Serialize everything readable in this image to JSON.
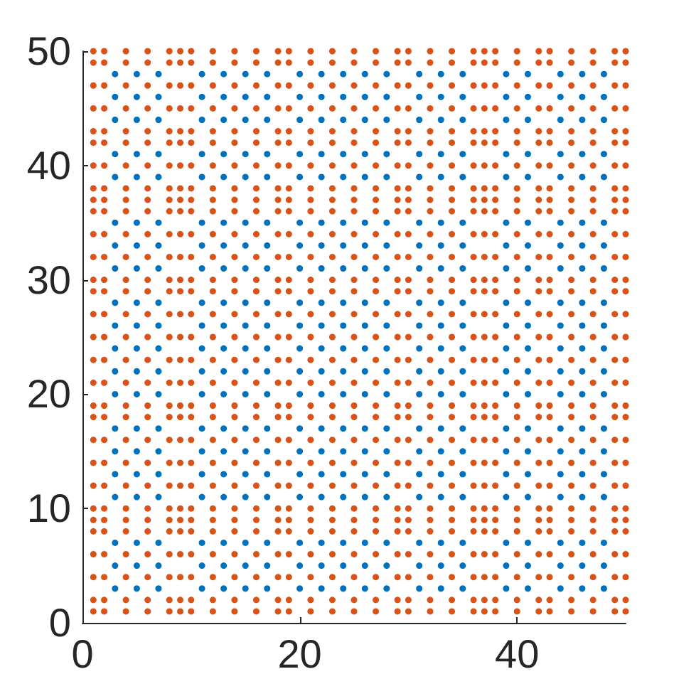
{
  "chart_data": {
    "type": "scatter",
    "xlim": [
      0,
      50
    ],
    "ylim": [
      0,
      50
    ],
    "xticks": [
      0,
      20,
      40
    ],
    "yticks": [
      0,
      10,
      20,
      30,
      40,
      50
    ],
    "grid": false,
    "legend": false,
    "marker": "circle",
    "series": [
      {
        "color": "#d95319",
        "x": [
          1,
          1,
          1,
          1,
          1,
          1,
          1,
          1,
          1,
          1,
          1,
          1,
          1,
          1,
          1,
          1,
          1,
          1,
          1,
          1,
          1,
          1,
          1,
          1,
          1,
          1,
          1,
          1,
          1,
          1,
          2,
          2,
          2,
          2,
          2,
          2,
          2,
          2,
          2,
          2,
          2,
          2,
          2,
          2,
          2,
          2,
          2,
          2,
          2,
          2,
          2,
          2,
          2,
          2,
          2,
          2,
          2,
          2,
          2,
          2,
          4,
          4,
          4,
          4,
          4,
          4,
          4,
          4,
          4,
          4,
          4,
          4,
          4,
          4,
          4,
          4,
          4,
          4,
          4,
          4,
          4,
          4,
          4,
          4,
          4,
          4,
          4,
          4,
          4,
          4,
          6,
          6,
          6,
          6,
          6,
          6,
          6,
          6,
          6,
          6,
          6,
          6,
          6,
          6,
          6,
          6,
          6,
          6,
          6,
          6,
          6,
          6,
          6,
          6,
          6,
          6,
          6,
          6,
          6,
          6,
          8,
          8,
          8,
          8,
          8,
          8,
          8,
          8,
          8,
          8,
          8,
          8,
          8,
          8,
          8,
          8,
          8,
          8,
          8,
          8,
          8,
          8,
          8,
          8,
          8,
          8,
          8,
          8,
          8,
          8,
          9,
          9,
          9,
          9,
          9,
          9,
          9,
          9,
          9,
          9,
          9,
          9,
          9,
          9,
          9,
          9,
          9,
          9,
          9,
          9,
          9,
          9,
          9,
          9,
          9,
          9,
          9,
          9,
          9,
          9,
          10,
          10,
          10,
          10,
          10,
          10,
          10,
          10,
          10,
          10,
          10,
          10,
          10,
          10,
          10,
          10,
          10,
          10,
          10,
          10,
          10,
          10,
          10,
          10,
          10,
          10,
          10,
          10,
          10,
          10,
          12,
          12,
          12,
          12,
          12,
          12,
          12,
          12,
          12,
          12,
          12,
          12,
          12,
          12,
          12,
          12,
          12,
          12,
          12,
          12,
          12,
          12,
          12,
          12,
          12,
          12,
          12,
          12,
          12,
          12,
          14,
          14,
          14,
          14,
          14,
          14,
          14,
          14,
          14,
          14,
          14,
          14,
          14,
          14,
          14,
          14,
          14,
          14,
          14,
          14,
          14,
          14,
          14,
          14,
          14,
          14,
          14,
          14,
          14,
          14,
          16,
          16,
          16,
          16,
          16,
          16,
          16,
          16,
          16,
          16,
          16,
          16,
          16,
          16,
          16,
          16,
          16,
          16,
          16,
          16,
          16,
          16,
          16,
          16,
          16,
          16,
          16,
          16,
          16,
          16,
          18,
          18,
          18,
          18,
          18,
          18,
          18,
          18,
          18,
          18,
          18,
          18,
          18,
          18,
          18,
          18,
          18,
          18,
          18,
          18,
          18,
          18,
          18,
          18,
          18,
          18,
          18,
          18,
          18,
          18,
          19,
          19,
          19,
          19,
          19,
          19,
          19,
          19,
          19,
          19,
          19,
          19,
          19,
          19,
          19,
          19,
          19,
          19,
          19,
          19,
          19,
          19,
          19,
          19,
          19,
          19,
          19,
          19,
          19,
          19,
          21,
          21,
          21,
          21,
          21,
          21,
          21,
          21,
          21,
          21,
          21,
          21,
          21,
          21,
          21,
          21,
          21,
          21,
          21,
          21,
          21,
          21,
          21,
          21,
          21,
          21,
          21,
          21,
          21,
          21,
          23,
          23,
          23,
          23,
          23,
          23,
          23,
          23,
          23,
          23,
          23,
          23,
          23,
          23,
          23,
          23,
          23,
          23,
          23,
          23,
          23,
          23,
          23,
          23,
          23,
          23,
          23,
          23,
          23,
          23,
          25,
          25,
          25,
          25,
          25,
          25,
          25,
          25,
          25,
          25,
          25,
          25,
          25,
          25,
          25,
          25,
          25,
          25,
          25,
          25,
          25,
          25,
          25,
          25,
          25,
          25,
          25,
          25,
          25,
          25,
          27,
          27,
          27,
          27,
          27,
          27,
          27,
          27,
          27,
          27,
          27,
          27,
          27,
          27,
          27,
          27,
          27,
          27,
          27,
          27,
          27,
          27,
          27,
          27,
          27,
          27,
          27,
          27,
          27,
          27,
          29,
          29,
          29,
          29,
          29,
          29,
          29,
          29,
          29,
          29,
          29,
          29,
          29,
          29,
          29,
          29,
          29,
          29,
          29,
          29,
          29,
          29,
          29,
          29,
          29,
          29,
          29,
          29,
          29,
          29,
          30,
          30,
          30,
          30,
          30,
          30,
          30,
          30,
          30,
          30,
          30,
          30,
          30,
          30,
          30,
          30,
          30,
          30,
          30,
          30,
          30,
          30,
          30,
          30,
          30,
          30,
          30,
          30,
          30,
          30,
          32,
          32,
          32,
          32,
          32,
          32,
          32,
          32,
          32,
          32,
          32,
          32,
          32,
          32,
          32,
          32,
          32,
          32,
          32,
          32,
          32,
          32,
          32,
          32,
          32,
          32,
          32,
          32,
          32,
          32,
          34,
          34,
          34,
          34,
          34,
          34,
          34,
          34,
          34,
          34,
          34,
          34,
          34,
          34,
          34,
          34,
          34,
          34,
          34,
          34,
          34,
          34,
          34,
          34,
          34,
          34,
          34,
          34,
          34,
          34,
          36,
          36,
          36,
          36,
          36,
          36,
          36,
          36,
          36,
          36,
          36,
          36,
          36,
          36,
          36,
          36,
          36,
          36,
          36,
          36,
          36,
          36,
          36,
          36,
          36,
          36,
          36,
          36,
          36,
          36,
          37,
          37,
          37,
          37,
          37,
          37,
          37,
          37,
          37,
          37,
          37,
          37,
          37,
          37,
          37,
          37,
          37,
          37,
          37,
          37,
          37,
          37,
          37,
          37,
          37,
          37,
          37,
          37,
          37,
          37,
          38,
          38,
          38,
          38,
          38,
          38,
          38,
          38,
          38,
          38,
          38,
          38,
          38,
          38,
          38,
          38,
          38,
          38,
          38,
          38,
          38,
          38,
          38,
          38,
          38,
          38,
          38,
          38,
          38,
          38,
          40,
          40,
          40,
          40,
          40,
          40,
          40,
          40,
          40,
          40,
          40,
          40,
          40,
          40,
          40,
          40,
          40,
          40,
          40,
          40,
          40,
          40,
          40,
          40,
          40,
          40,
          40,
          40,
          40,
          40,
          42,
          42,
          42,
          42,
          42,
          42,
          42,
          42,
          42,
          42,
          42,
          42,
          42,
          42,
          42,
          42,
          42,
          42,
          42,
          42,
          42,
          42,
          42,
          42,
          42,
          42,
          42,
          42,
          42,
          42,
          43,
          43,
          43,
          43,
          43,
          43,
          43,
          43,
          43,
          43,
          43,
          43,
          43,
          43,
          43,
          43,
          43,
          43,
          43,
          43,
          43,
          43,
          43,
          43,
          43,
          43,
          43,
          43,
          43,
          43,
          45,
          45,
          45,
          45,
          45,
          45,
          45,
          45,
          45,
          45,
          45,
          45,
          45,
          45,
          45,
          45,
          45,
          45,
          45,
          45,
          45,
          45,
          45,
          45,
          45,
          45,
          45,
          45,
          45,
          45,
          47,
          47,
          47,
          47,
          47,
          47,
          47,
          47,
          47,
          47,
          47,
          47,
          47,
          47,
          47,
          47,
          47,
          47,
          47,
          47,
          47,
          47,
          47,
          47,
          47,
          47,
          47,
          47,
          47,
          47,
          49,
          49,
          49,
          49,
          49,
          49,
          49,
          49,
          49,
          49,
          49,
          49,
          49,
          49,
          49,
          49,
          49,
          49,
          49,
          49,
          49,
          49,
          49,
          49,
          49,
          49,
          49,
          49,
          49,
          49,
          50,
          50,
          50,
          50,
          50,
          50,
          50,
          50,
          50,
          50,
          50,
          50,
          50,
          50,
          50,
          50,
          50,
          50,
          50,
          50,
          50,
          50,
          50,
          50,
          50,
          50,
          50,
          50,
          50,
          50
        ],
        "values": [
          1,
          2,
          4,
          6,
          8,
          9,
          10,
          12,
          14,
          16,
          18,
          19,
          21,
          23,
          25,
          27,
          29,
          30,
          32,
          34,
          36,
          37,
          38,
          40,
          42,
          43,
          45,
          47,
          49,
          50,
          1,
          2,
          4,
          6,
          8,
          9,
          10,
          12,
          14,
          16,
          18,
          19,
          21,
          23,
          25,
          27,
          29,
          30,
          32,
          34,
          36,
          37,
          38,
          40,
          42,
          43,
          45,
          47,
          49,
          50,
          1,
          2,
          4,
          6,
          8,
          9,
          10,
          12,
          14,
          16,
          18,
          19,
          21,
          23,
          25,
          27,
          29,
          30,
          32,
          34,
          36,
          37,
          38,
          40,
          42,
          43,
          45,
          47,
          49,
          50,
          1,
          2,
          4,
          6,
          8,
          9,
          10,
          12,
          14,
          16,
          18,
          19,
          21,
          23,
          25,
          27,
          29,
          30,
          32,
          34,
          36,
          37,
          38,
          40,
          42,
          43,
          45,
          47,
          49,
          50,
          1,
          2,
          4,
          6,
          8,
          9,
          10,
          12,
          14,
          16,
          18,
          19,
          21,
          23,
          25,
          27,
          29,
          30,
          32,
          34,
          36,
          37,
          38,
          40,
          42,
          43,
          45,
          47,
          49,
          50,
          1,
          2,
          4,
          6,
          8,
          9,
          10,
          12,
          14,
          16,
          18,
          19,
          21,
          23,
          25,
          27,
          29,
          30,
          32,
          34,
          36,
          37,
          38,
          40,
          42,
          43,
          45,
          47,
          49,
          50,
          1,
          2,
          4,
          6,
          8,
          9,
          10,
          12,
          14,
          16,
          18,
          19,
          21,
          23,
          25,
          27,
          29,
          30,
          32,
          34,
          36,
          37,
          38,
          40,
          42,
          43,
          45,
          47,
          49,
          50,
          1,
          2,
          4,
          6,
          8,
          9,
          10,
          12,
          14,
          16,
          18,
          19,
          21,
          23,
          25,
          27,
          29,
          30,
          32,
          34,
          36,
          37,
          38,
          40,
          42,
          43,
          45,
          47,
          49,
          50,
          1,
          2,
          4,
          6,
          8,
          9,
          10,
          12,
          14,
          16,
          18,
          19,
          21,
          23,
          25,
          27,
          29,
          30,
          32,
          34,
          36,
          37,
          38,
          40,
          42,
          43,
          45,
          47,
          49,
          50,
          1,
          2,
          4,
          6,
          8,
          9,
          10,
          12,
          14,
          16,
          18,
          19,
          21,
          23,
          25,
          27,
          29,
          30,
          32,
          34,
          36,
          37,
          38,
          40,
          42,
          43,
          45,
          47,
          49,
          50,
          1,
          2,
          4,
          6,
          8,
          9,
          10,
          12,
          14,
          16,
          18,
          19,
          21,
          23,
          25,
          27,
          29,
          30,
          32,
          34,
          36,
          37,
          38,
          40,
          42,
          43,
          45,
          47,
          49,
          50,
          1,
          2,
          4,
          6,
          8,
          9,
          10,
          12,
          14,
          16,
          18,
          19,
          21,
          23,
          25,
          27,
          29,
          30,
          32,
          34,
          36,
          37,
          38,
          40,
          42,
          43,
          45,
          47,
          49,
          50,
          1,
          2,
          4,
          6,
          8,
          9,
          10,
          12,
          14,
          16,
          18,
          19,
          21,
          23,
          25,
          27,
          29,
          30,
          32,
          34,
          36,
          37,
          38,
          40,
          42,
          43,
          45,
          47,
          49,
          50,
          1,
          2,
          4,
          6,
          8,
          9,
          10,
          12,
          14,
          16,
          18,
          19,
          21,
          23,
          25,
          27,
          29,
          30,
          32,
          34,
          36,
          37,
          38,
          40,
          42,
          43,
          45,
          47,
          49,
          50,
          1,
          2,
          4,
          6,
          8,
          9,
          10,
          12,
          14,
          16,
          18,
          19,
          21,
          23,
          25,
          27,
          29,
          30,
          32,
          34,
          36,
          37,
          38,
          40,
          42,
          43,
          45,
          47,
          49,
          50,
          1,
          2,
          4,
          6,
          8,
          9,
          10,
          12,
          14,
          16,
          18,
          19,
          21,
          23,
          25,
          27,
          29,
          30,
          32,
          34,
          36,
          37,
          38,
          40,
          42,
          43,
          45,
          47,
          49,
          50,
          1,
          2,
          4,
          6,
          8,
          9,
          10,
          12,
          14,
          16,
          18,
          19,
          21,
          23,
          25,
          27,
          29,
          30,
          32,
          34,
          36,
          37,
          38,
          40,
          42,
          43,
          45,
          47,
          49,
          50,
          1,
          2,
          4,
          6,
          8,
          9,
          10,
          12,
          14,
          16,
          18,
          19,
          21,
          23,
          25,
          27,
          29,
          30,
          32,
          34,
          36,
          37,
          38,
          40,
          42,
          43,
          45,
          47,
          49,
          50,
          1,
          2,
          4,
          6,
          8,
          9,
          10,
          12,
          14,
          16,
          18,
          19,
          21,
          23,
          25,
          27,
          29,
          30,
          32,
          34,
          36,
          37,
          38,
          40,
          42,
          43,
          45,
          47,
          49,
          50,
          1,
          2,
          4,
          6,
          8,
          9,
          10,
          12,
          14,
          16,
          18,
          19,
          21,
          23,
          25,
          27,
          29,
          30,
          32,
          34,
          36,
          37,
          38,
          40,
          42,
          43,
          45,
          47,
          49,
          50,
          1,
          2,
          4,
          6,
          8,
          9,
          10,
          12,
          14,
          16,
          18,
          19,
          21,
          23,
          25,
          27,
          29,
          30,
          32,
          34,
          36,
          37,
          38,
          40,
          42,
          43,
          45,
          47,
          49,
          50,
          1,
          2,
          4,
          6,
          8,
          9,
          10,
          12,
          14,
          16,
          18,
          19,
          21,
          23,
          25,
          27,
          29,
          30,
          32,
          34,
          36,
          37,
          38,
          40,
          42,
          43,
          45,
          47,
          49,
          50,
          1,
          2,
          4,
          6,
          8,
          9,
          10,
          12,
          14,
          16,
          18,
          19,
          21,
          23,
          25,
          27,
          29,
          30,
          32,
          34,
          36,
          37,
          38,
          40,
          42,
          43,
          45,
          47,
          49,
          50,
          1,
          2,
          4,
          6,
          8,
          9,
          10,
          12,
          14,
          16,
          18,
          19,
          21,
          23,
          25,
          27,
          29,
          30,
          32,
          34,
          36,
          37,
          38,
          40,
          42,
          43,
          45,
          47,
          49,
          50,
          1,
          2,
          4,
          6,
          8,
          9,
          10,
          12,
          14,
          16,
          18,
          19,
          21,
          23,
          25,
          27,
          29,
          30,
          32,
          34,
          36,
          37,
          38,
          40,
          42,
          43,
          45,
          47,
          49,
          50,
          1,
          2,
          4,
          6,
          8,
          9,
          10,
          12,
          14,
          16,
          18,
          19,
          21,
          23,
          25,
          27,
          29,
          30,
          32,
          34,
          36,
          37,
          38,
          40,
          42,
          43,
          45,
          47,
          49,
          50,
          1,
          2,
          4,
          6,
          8,
          9,
          10,
          12,
          14,
          16,
          18,
          19,
          21,
          23,
          25,
          27,
          29,
          30,
          32,
          34,
          36,
          37,
          38,
          40,
          42,
          43,
          45,
          47,
          49,
          50,
          1,
          2,
          4,
          6,
          8,
          9,
          10,
          12,
          14,
          16,
          18,
          19,
          21,
          23,
          25,
          27,
          29,
          30,
          32,
          34,
          36,
          37,
          38,
          40,
          42,
          43,
          45,
          47,
          49,
          50,
          1,
          2,
          4,
          6,
          8,
          9,
          10,
          12,
          14,
          16,
          18,
          19,
          21,
          23,
          25,
          27,
          29,
          30,
          32,
          34,
          36,
          37,
          38,
          40,
          42,
          43,
          45,
          47,
          49,
          50,
          1,
          2,
          4,
          6,
          8,
          9,
          10,
          12,
          14,
          16,
          18,
          19,
          21,
          23,
          25,
          27,
          29,
          30,
          32,
          34,
          36,
          37,
          38,
          40,
          42,
          43,
          45,
          47,
          49,
          50
        ]
      },
      {
        "color": "#0072bd",
        "x": [
          3,
          3,
          3,
          3,
          3,
          3,
          3,
          3,
          3,
          3,
          3,
          3,
          3,
          3,
          3,
          3,
          3,
          3,
          3,
          3,
          5,
          5,
          5,
          5,
          5,
          5,
          5,
          5,
          5,
          5,
          5,
          5,
          5,
          5,
          5,
          5,
          5,
          5,
          5,
          5,
          7,
          7,
          7,
          7,
          7,
          7,
          7,
          7,
          7,
          7,
          7,
          7,
          7,
          7,
          7,
          7,
          7,
          7,
          7,
          7,
          11,
          11,
          11,
          11,
          11,
          11,
          11,
          11,
          11,
          11,
          11,
          11,
          11,
          11,
          11,
          11,
          11,
          11,
          11,
          11,
          13,
          13,
          13,
          13,
          13,
          13,
          13,
          13,
          13,
          13,
          13,
          13,
          13,
          13,
          13,
          13,
          13,
          13,
          13,
          13,
          15,
          15,
          15,
          15,
          15,
          15,
          15,
          15,
          15,
          15,
          15,
          15,
          15,
          15,
          15,
          15,
          15,
          15,
          15,
          15,
          17,
          17,
          17,
          17,
          17,
          17,
          17,
          17,
          17,
          17,
          17,
          17,
          17,
          17,
          17,
          17,
          17,
          17,
          17,
          17,
          20,
          20,
          20,
          20,
          20,
          20,
          20,
          20,
          20,
          20,
          20,
          20,
          20,
          20,
          20,
          20,
          20,
          20,
          20,
          20,
          22,
          22,
          22,
          22,
          22,
          22,
          22,
          22,
          22,
          22,
          22,
          22,
          22,
          22,
          22,
          22,
          22,
          22,
          22,
          22,
          24,
          24,
          24,
          24,
          24,
          24,
          24,
          24,
          24,
          24,
          24,
          24,
          24,
          24,
          24,
          24,
          24,
          24,
          24,
          24,
          26,
          26,
          26,
          26,
          26,
          26,
          26,
          26,
          26,
          26,
          26,
          26,
          26,
          26,
          26,
          26,
          26,
          26,
          26,
          26,
          28,
          28,
          28,
          28,
          28,
          28,
          28,
          28,
          28,
          28,
          28,
          28,
          28,
          28,
          28,
          28,
          28,
          28,
          28,
          28,
          31,
          31,
          31,
          31,
          31,
          31,
          31,
          31,
          31,
          31,
          31,
          31,
          31,
          31,
          31,
          31,
          31,
          31,
          31,
          31,
          33,
          33,
          33,
          33,
          33,
          33,
          33,
          33,
          33,
          33,
          33,
          33,
          33,
          33,
          33,
          33,
          33,
          33,
          33,
          33,
          35,
          35,
          35,
          35,
          35,
          35,
          35,
          35,
          35,
          35,
          35,
          35,
          35,
          35,
          35,
          35,
          35,
          35,
          35,
          35,
          39,
          39,
          39,
          39,
          39,
          39,
          39,
          39,
          39,
          39,
          39,
          39,
          39,
          39,
          39,
          39,
          39,
          39,
          39,
          39,
          41,
          41,
          41,
          41,
          41,
          41,
          41,
          41,
          41,
          41,
          41,
          41,
          41,
          41,
          41,
          41,
          41,
          41,
          41,
          41,
          44,
          44,
          44,
          44,
          44,
          44,
          44,
          44,
          44,
          44,
          44,
          44,
          44,
          44,
          44,
          44,
          44,
          44,
          44,
          44,
          46,
          46,
          46,
          46,
          46,
          46,
          46,
          46,
          46,
          46,
          46,
          46,
          46,
          46,
          46,
          46,
          46,
          46,
          46,
          46,
          48,
          48,
          48,
          48,
          48,
          48,
          48,
          48,
          48,
          48,
          48,
          48,
          48,
          48,
          48,
          48,
          48,
          48,
          48,
          48
        ],
        "values": [
          3,
          5,
          7,
          11,
          13,
          15,
          17,
          20,
          22,
          24,
          26,
          28,
          31,
          33,
          35,
          39,
          41,
          44,
          46,
          48,
          3,
          5,
          7,
          11,
          13,
          15,
          17,
          20,
          22,
          24,
          26,
          28,
          31,
          33,
          35,
          39,
          41,
          44,
          46,
          48,
          3,
          5,
          7,
          11,
          13,
          15,
          17,
          20,
          22,
          24,
          26,
          28,
          31,
          33,
          35,
          39,
          41,
          44,
          46,
          48,
          3,
          5,
          7,
          11,
          13,
          15,
          17,
          20,
          22,
          24,
          26,
          28,
          31,
          33,
          35,
          39,
          41,
          44,
          46,
          48,
          3,
          5,
          7,
          11,
          13,
          15,
          17,
          20,
          22,
          24,
          26,
          28,
          31,
          33,
          35,
          39,
          41,
          44,
          46,
          48,
          3,
          5,
          7,
          11,
          13,
          15,
          17,
          20,
          22,
          24,
          26,
          28,
          31,
          33,
          35,
          39,
          41,
          44,
          46,
          48,
          3,
          5,
          7,
          11,
          13,
          15,
          17,
          20,
          22,
          24,
          26,
          28,
          31,
          33,
          35,
          39,
          41,
          44,
          46,
          48,
          3,
          5,
          7,
          11,
          13,
          15,
          17,
          20,
          22,
          24,
          26,
          28,
          31,
          33,
          35,
          39,
          41,
          44,
          46,
          48,
          3,
          5,
          7,
          11,
          13,
          15,
          17,
          20,
          22,
          24,
          26,
          28,
          31,
          33,
          35,
          39,
          41,
          44,
          46,
          48,
          3,
          5,
          7,
          11,
          13,
          15,
          17,
          20,
          22,
          24,
          26,
          28,
          31,
          33,
          35,
          39,
          41,
          44,
          46,
          48,
          3,
          5,
          7,
          11,
          13,
          15,
          17,
          20,
          22,
          24,
          26,
          28,
          31,
          33,
          35,
          39,
          41,
          44,
          46,
          48,
          3,
          5,
          7,
          11,
          13,
          15,
          17,
          20,
          22,
          24,
          26,
          28,
          31,
          33,
          35,
          39,
          41,
          44,
          46,
          48,
          3,
          5,
          7,
          11,
          13,
          15,
          17,
          20,
          22,
          24,
          26,
          28,
          31,
          33,
          35,
          39,
          41,
          44,
          46,
          48,
          3,
          5,
          7,
          11,
          13,
          15,
          17,
          20,
          22,
          24,
          26,
          28,
          31,
          33,
          35,
          39,
          41,
          44,
          46,
          48,
          3,
          5,
          7,
          11,
          13,
          15,
          17,
          20,
          22,
          24,
          26,
          28,
          31,
          33,
          35,
          39,
          41,
          44,
          46,
          48,
          3,
          5,
          7,
          11,
          13,
          15,
          17,
          20,
          22,
          24,
          26,
          28,
          31,
          33,
          35,
          39,
          41,
          44,
          46,
          48,
          3,
          5,
          7,
          11,
          13,
          15,
          17,
          20,
          22,
          24,
          26,
          28,
          31,
          33,
          35,
          39,
          41,
          44,
          46,
          48,
          3,
          5,
          7,
          11,
          13,
          15,
          17,
          20,
          22,
          24,
          26,
          28,
          31,
          33,
          35,
          39,
          41,
          44,
          46,
          48,
          3,
          5,
          7,
          11,
          13,
          15,
          17,
          20,
          22,
          24,
          26,
          28,
          31,
          33,
          35,
          39,
          41,
          44,
          46,
          48,
          3,
          5,
          7,
          11,
          13,
          15,
          17,
          20,
          22,
          24,
          26,
          28,
          31,
          33,
          35,
          39,
          41,
          44,
          46,
          48
        ]
      }
    ]
  }
}
